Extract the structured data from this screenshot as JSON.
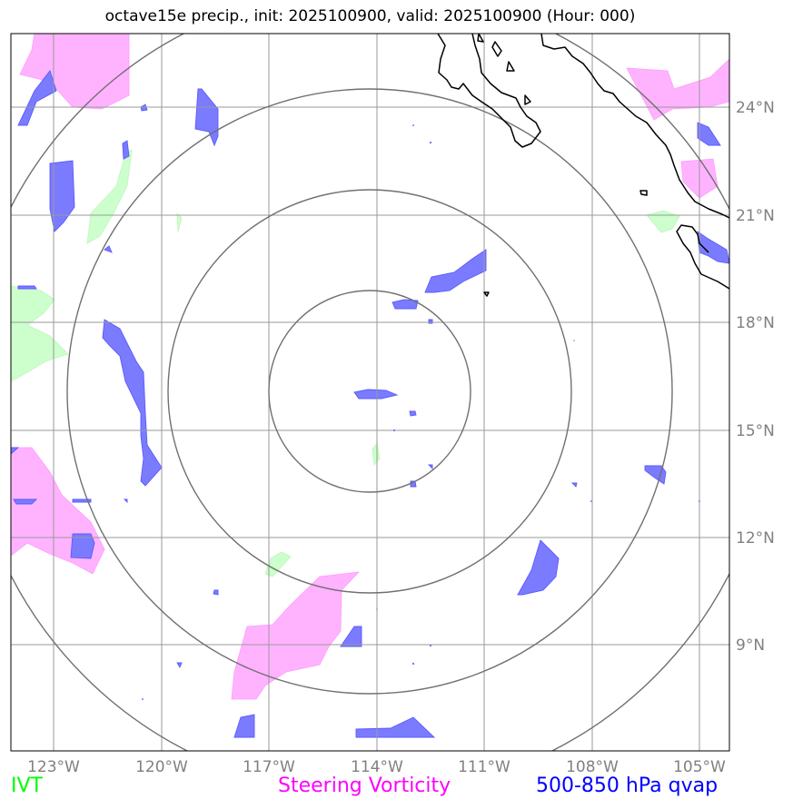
{
  "title": "octave15e precip., init: 2025100900, valid: 2025100900 (Hour: 000)",
  "map": {
    "lon_ticks": [
      "123°W",
      "120°W",
      "117°W",
      "114°W",
      "111°W",
      "108°W",
      "105°W"
    ],
    "lat_ticks": [
      "24°N",
      "21°N",
      "18°N",
      "15°N",
      "12°N",
      "9°N"
    ],
    "center": {
      "lon": "114°W",
      "lat": "16°N"
    }
  },
  "legend": {
    "ivt": {
      "label": "IVT",
      "color": "#00ff00"
    },
    "vorticity": {
      "label": "Steering Vorticity",
      "color": "#ff00ff"
    },
    "qvap": {
      "label": "500-850 hPa qvap",
      "color": "#0000ff"
    }
  },
  "colors": {
    "ivt_fill": "#ccffcc",
    "vort_fill": "#ffb3ff",
    "qvap_fill": "#7b7bff",
    "grid": "#9a9a9a",
    "rings": "#707070",
    "coast": "#000000"
  }
}
